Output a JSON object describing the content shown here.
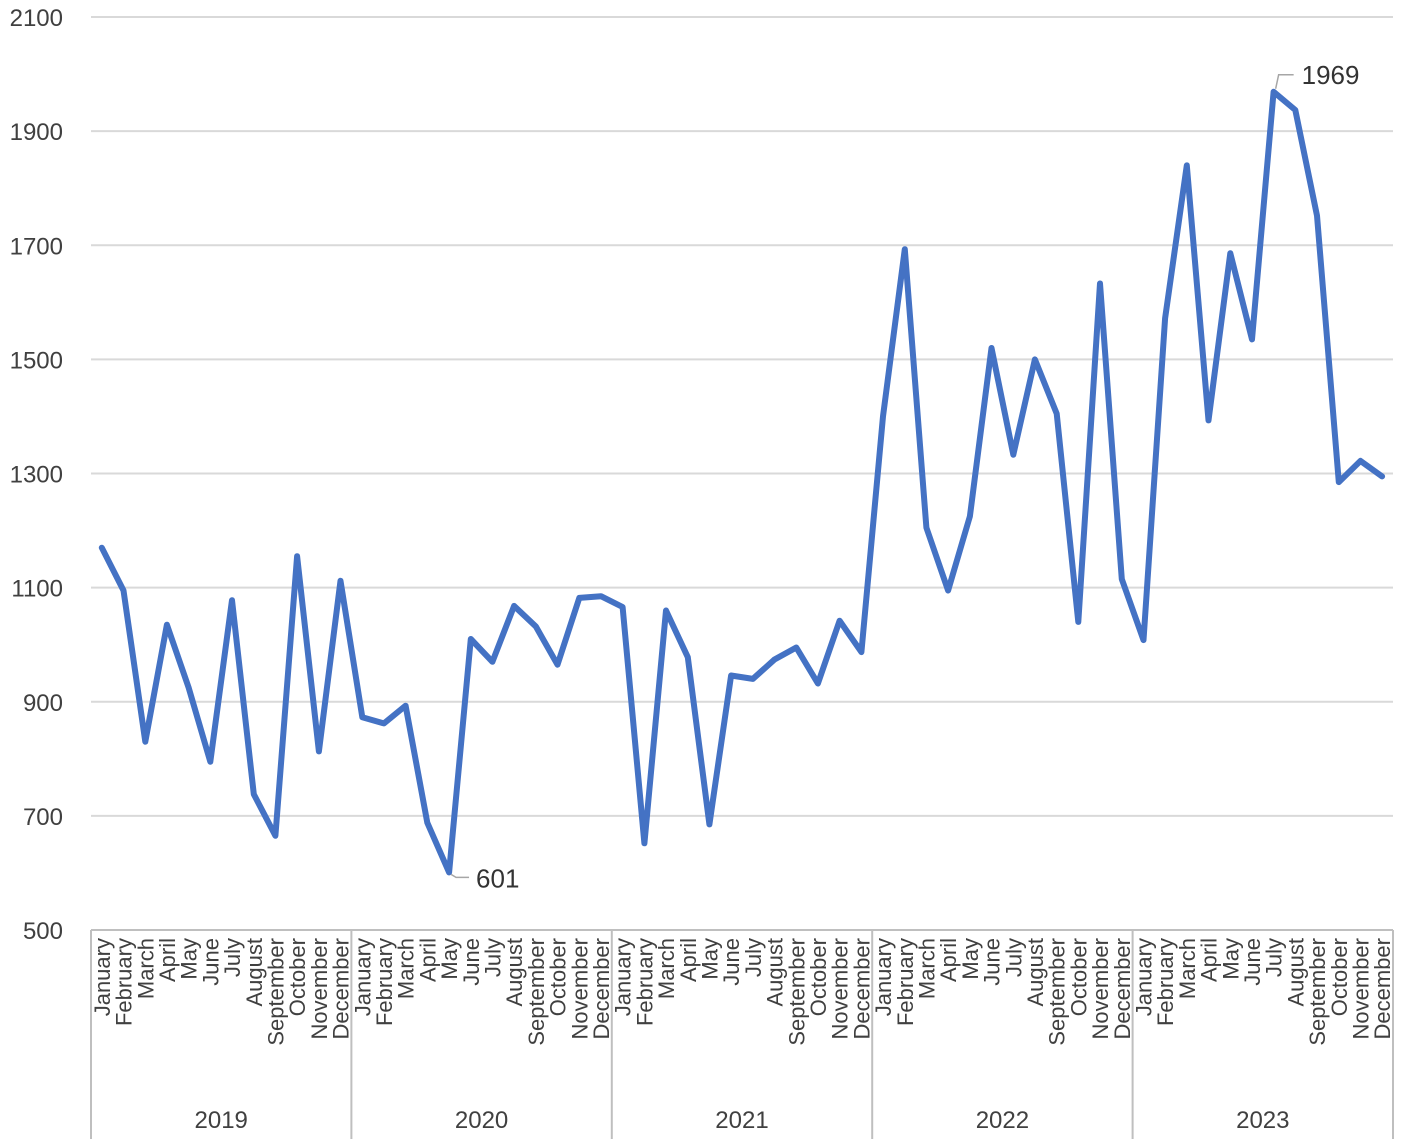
{
  "chart_data": {
    "type": "line",
    "title": "",
    "xlabel": "",
    "ylabel": "",
    "ylim": [
      500,
      2100
    ],
    "yticks": [
      500,
      700,
      900,
      1100,
      1300,
      1500,
      1700,
      1900,
      2100
    ],
    "grid": true,
    "legend": "none",
    "color": "#4472C4",
    "months": [
      "January",
      "February",
      "March",
      "April",
      "May",
      "June",
      "July",
      "August",
      "September",
      "October",
      "November",
      "December"
    ],
    "years": [
      "2019",
      "2020",
      "2021",
      "2022",
      "2023"
    ],
    "series": [
      {
        "values": [
          1170,
          1095,
          830,
          1035,
          925,
          795,
          1078,
          738,
          665,
          1155,
          813,
          1112,
          873,
          862,
          893,
          688,
          601,
          1010,
          970,
          1068,
          1032,
          965,
          1082,
          1085,
          1066,
          652,
          1060,
          978,
          685,
          946,
          940,
          974,
          995,
          932,
          1042,
          987,
          1400,
          1693,
          1205,
          1095,
          1225,
          1520,
          1333,
          1500,
          1405,
          1040,
          1633,
          1115,
          1008,
          1572,
          1840,
          1393,
          1686,
          1535,
          1969,
          1937,
          1752,
          1285,
          1322,
          1295
        ]
      }
    ],
    "annotations": [
      {
        "index": 16,
        "label": "601"
      },
      {
        "index": 54,
        "label": "1969"
      }
    ]
  }
}
